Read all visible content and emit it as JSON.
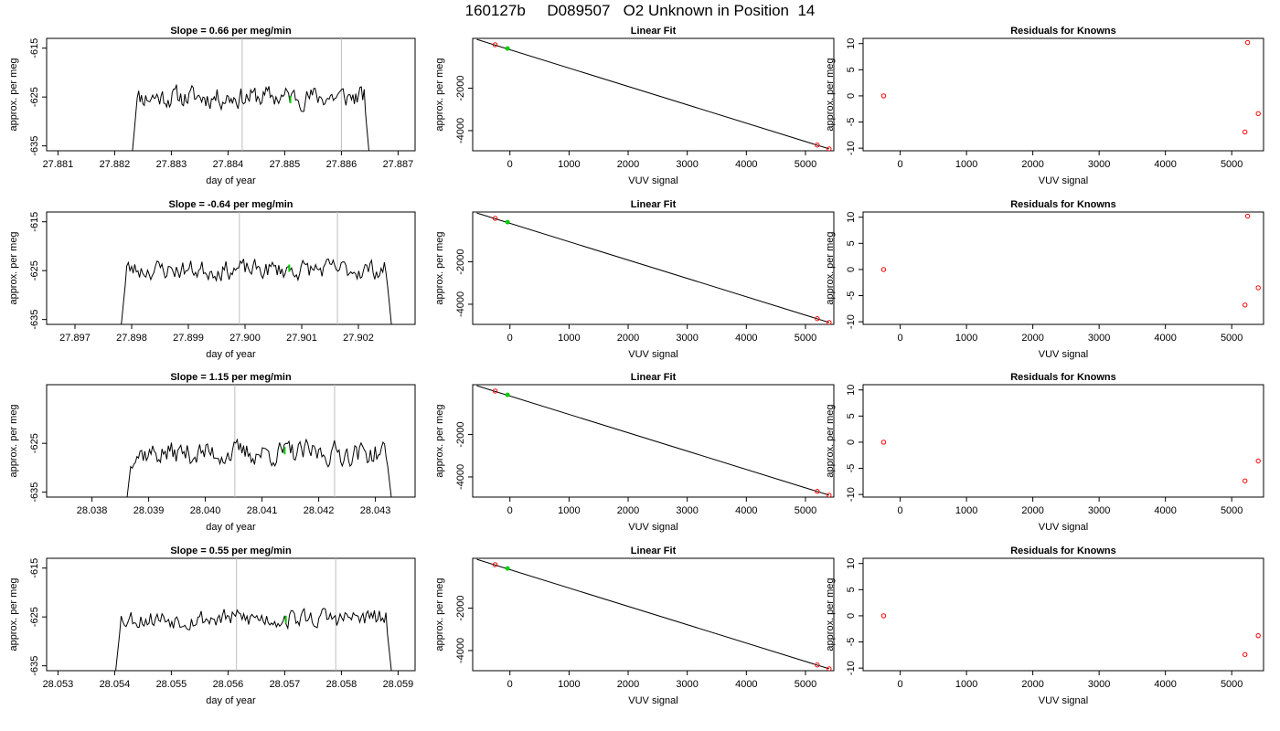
{
  "page": {
    "title": "160127b     D089507   O2 Unknown in Position  14"
  },
  "chart_data": [
    {
      "type": "line",
      "row": 1,
      "kind": "timeseries",
      "title": "Slope =  0.66  per meg/min",
      "xlabel": "day of year",
      "ylabel": "approx. per meg",
      "xlim": [
        27.8808,
        27.8873
      ],
      "ylim": [
        -636,
        -613
      ],
      "xticks": [
        "27.881",
        "27.882",
        "27.883",
        "27.884",
        "27.885",
        "27.886",
        "27.887"
      ],
      "yticks": [
        "-615",
        "-625",
        "-635"
      ],
      "window": [
        27.88425,
        27.886
      ],
      "marker": {
        "x": 27.8851,
        "y": -625.5,
        "color": "#00cc00"
      },
      "x": [
        27.8823,
        27.8865
      ],
      "mean": -625,
      "noise": 2.2,
      "seed": 11,
      "npts": 170,
      "line_color": "#000000",
      "window_color": "#bebebe"
    },
    {
      "type": "line",
      "row": 1,
      "kind": "fit",
      "title": "Linear Fit",
      "xlabel": "VUV signal",
      "ylabel": "approx. per meg",
      "xlim": [
        -630,
        5480
      ],
      "ylim": [
        -4950,
        350
      ],
      "xticks": [
        "0",
        "1000",
        "2000",
        "3000",
        "4000",
        "5000"
      ],
      "yticks": [
        "-2000",
        "-4000"
      ],
      "line": {
        "x": [
          -560,
          5400
        ],
        "y": [
          300,
          -4860
        ]
      },
      "points_known": [
        {
          "x": -250,
          "y": 50
        },
        {
          "x": 5200,
          "y": -4680
        },
        {
          "x": 5400,
          "y": -4860
        }
      ],
      "points_unknown": [
        {
          "x": -40,
          "y": -130
        }
      ],
      "known_color": "#ff0000",
      "unknown_color": "#00cc00"
    },
    {
      "type": "scatter",
      "row": 1,
      "kind": "residuals",
      "title": "Residuals for Knowns",
      "xlabel": "VUV signal",
      "ylabel": "approx. per meg",
      "xlim": [
        -560,
        5480
      ],
      "ylim": [
        -10.5,
        11
      ],
      "xticks": [
        "0",
        "1000",
        "2000",
        "3000",
        "4000",
        "5000"
      ],
      "yticks": [
        "10",
        "5",
        "0",
        "-5",
        "-10"
      ],
      "points": [
        {
          "x": -250,
          "y": 0
        },
        {
          "x": 5240,
          "y": 10.2
        },
        {
          "x": 5200,
          "y": -6.9
        },
        {
          "x": 5400,
          "y": -3.4
        }
      ],
      "color": "#ff0000"
    },
    {
      "type": "line",
      "row": 2,
      "kind": "timeseries",
      "title": "Slope =  -0.64  per meg/min",
      "xlabel": "day of year",
      "ylabel": "approx. per meg",
      "xlim": [
        27.8965,
        27.903
      ],
      "ylim": [
        -636,
        -613
      ],
      "xticks": [
        "27.897",
        "27.898",
        "27.899",
        "27.900",
        "27.901",
        "27.902"
      ],
      "yticks": [
        "-615",
        "-625",
        "-635"
      ],
      "window": [
        27.8999,
        27.90163
      ],
      "marker": {
        "x": 27.90078,
        "y": -624.5,
        "color": "#00cc00"
      },
      "x": [
        27.8978,
        27.9026
      ],
      "mean": -624.8,
      "noise": 2.0,
      "seed": 23,
      "npts": 170,
      "line_color": "#000000",
      "window_color": "#bebebe"
    },
    {
      "type": "line",
      "row": 2,
      "kind": "fit",
      "title": "Linear Fit",
      "xlabel": "VUV signal",
      "ylabel": "approx. per meg",
      "xlim": [
        -630,
        5480
      ],
      "ylim": [
        -4950,
        350
      ],
      "xticks": [
        "0",
        "1000",
        "2000",
        "3000",
        "4000",
        "5000"
      ],
      "yticks": [
        "-2000",
        "-4000"
      ],
      "line": {
        "x": [
          -560,
          5400
        ],
        "y": [
          300,
          -4860
        ]
      },
      "points_known": [
        {
          "x": -250,
          "y": 50
        },
        {
          "x": 5200,
          "y": -4680
        },
        {
          "x": 5400,
          "y": -4860
        }
      ],
      "points_unknown": [
        {
          "x": -40,
          "y": -130
        }
      ],
      "known_color": "#ff0000",
      "unknown_color": "#00cc00"
    },
    {
      "type": "scatter",
      "row": 2,
      "kind": "residuals",
      "title": "Residuals for Knowns",
      "xlabel": "VUV signal",
      "ylabel": "approx. per meg",
      "xlim": [
        -560,
        5480
      ],
      "ylim": [
        -10.5,
        11
      ],
      "xticks": [
        "0",
        "1000",
        "2000",
        "3000",
        "4000",
        "5000"
      ],
      "yticks": [
        "10",
        "5",
        "0",
        "-5",
        "-10"
      ],
      "points": [
        {
          "x": -250,
          "y": 0
        },
        {
          "x": 5240,
          "y": 10.2
        },
        {
          "x": 5200,
          "y": -6.8
        },
        {
          "x": 5400,
          "y": -3.5
        }
      ],
      "color": "#ff0000"
    },
    {
      "type": "line",
      "row": 3,
      "kind": "timeseries",
      "title": "Slope =  1.15  per meg/min",
      "xlabel": "day of year",
      "ylabel": "approx. per meg",
      "xlim": [
        28.0372,
        28.0437
      ],
      "ylim": [
        -636,
        -613
      ],
      "xticks": [
        "28.038",
        "28.039",
        "28.040",
        "28.041",
        "28.042",
        "28.043"
      ],
      "yticks": [
        "-625",
        "-635"
      ],
      "window": [
        28.04052,
        28.04228
      ],
      "marker": {
        "x": 28.0414,
        "y": -626.5,
        "color": "#00cc00"
      },
      "x": [
        28.0386,
        28.0433
      ],
      "mean": -627,
      "noise": 2.4,
      "seed": 37,
      "npts": 170,
      "line_color": "#000000",
      "window_color": "#bebebe"
    },
    {
      "type": "line",
      "row": 3,
      "kind": "fit",
      "title": "Linear Fit",
      "xlabel": "VUV signal",
      "ylabel": "approx. per meg",
      "xlim": [
        -630,
        5480
      ],
      "ylim": [
        -4950,
        350
      ],
      "xticks": [
        "0",
        "1000",
        "2000",
        "3000",
        "4000",
        "5000"
      ],
      "yticks": [
        "-2000",
        "-4000"
      ],
      "line": {
        "x": [
          -560,
          5400
        ],
        "y": [
          300,
          -4860
        ]
      },
      "points_known": [
        {
          "x": -250,
          "y": 50
        },
        {
          "x": 5200,
          "y": -4680
        },
        {
          "x": 5400,
          "y": -4860
        }
      ],
      "points_unknown": [
        {
          "x": -40,
          "y": -130
        }
      ],
      "known_color": "#ff0000",
      "unknown_color": "#00cc00"
    },
    {
      "type": "scatter",
      "row": 3,
      "kind": "residuals",
      "title": "Residuals for Knowns",
      "xlabel": "VUV signal",
      "ylabel": "approx. per meg",
      "xlim": [
        -560,
        5480
      ],
      "ylim": [
        -10.5,
        11
      ],
      "xticks": [
        "0",
        "1000",
        "2000",
        "3000",
        "4000",
        "5000"
      ],
      "yticks": [
        "10",
        "5",
        "0",
        "-5",
        "-10"
      ],
      "points": [
        {
          "x": -250,
          "y": 0
        },
        {
          "x": 5200,
          "y": -7.4
        },
        {
          "x": 5400,
          "y": -3.6
        }
      ],
      "color": "#ff0000"
    },
    {
      "type": "line",
      "row": 4,
      "kind": "timeseries",
      "title": "Slope =  0.55  per meg/min",
      "xlabel": "day of year",
      "ylabel": "approx. per meg",
      "xlim": [
        28.0528,
        28.0593
      ],
      "ylim": [
        -636,
        -613
      ],
      "xticks": [
        "28.053",
        "28.054",
        "28.055",
        "28.056",
        "28.057",
        "28.058",
        "28.059"
      ],
      "yticks": [
        "-615",
        "-625",
        "-635"
      ],
      "window": [
        28.05615,
        28.0579
      ],
      "marker": {
        "x": 28.05702,
        "y": -625.5,
        "color": "#00cc00"
      },
      "x": [
        28.054,
        28.0589
      ],
      "mean": -625.3,
      "noise": 2.0,
      "seed": 53,
      "npts": 170,
      "line_color": "#000000",
      "window_color": "#bebebe"
    },
    {
      "type": "line",
      "row": 4,
      "kind": "fit",
      "title": "Linear Fit",
      "xlabel": "VUV signal",
      "ylabel": "approx. per meg",
      "xlim": [
        -630,
        5480
      ],
      "ylim": [
        -4950,
        350
      ],
      "xticks": [
        "0",
        "1000",
        "2000",
        "3000",
        "4000",
        "5000"
      ],
      "yticks": [
        "-2000",
        "-4000"
      ],
      "line": {
        "x": [
          -560,
          5400
        ],
        "y": [
          300,
          -4860
        ]
      },
      "points_known": [
        {
          "x": -250,
          "y": 50
        },
        {
          "x": 5200,
          "y": -4680
        },
        {
          "x": 5400,
          "y": -4860
        }
      ],
      "points_unknown": [
        {
          "x": -40,
          "y": -130
        }
      ],
      "known_color": "#ff0000",
      "unknown_color": "#00cc00"
    },
    {
      "type": "scatter",
      "row": 4,
      "kind": "residuals",
      "title": "Residuals for Knowns",
      "xlabel": "VUV signal",
      "ylabel": "approx. per meg",
      "xlim": [
        -560,
        5480
      ],
      "ylim": [
        -10.5,
        11
      ],
      "xticks": [
        "0",
        "1000",
        "2000",
        "3000",
        "4000",
        "5000"
      ],
      "yticks": [
        "10",
        "5",
        "0",
        "-5",
        "-10"
      ],
      "points": [
        {
          "x": -250,
          "y": 0
        },
        {
          "x": 5200,
          "y": -7.4
        },
        {
          "x": 5400,
          "y": -3.8
        }
      ],
      "color": "#ff0000"
    }
  ]
}
